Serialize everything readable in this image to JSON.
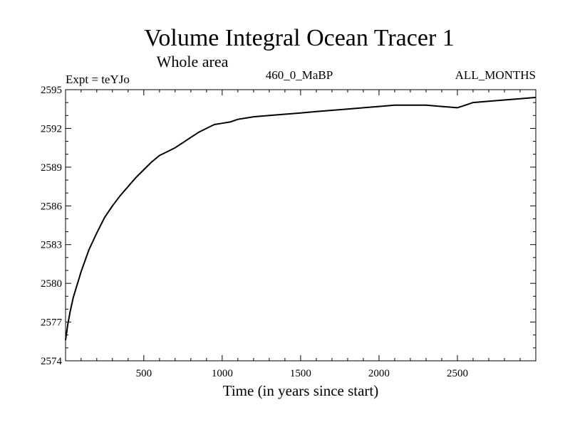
{
  "chart_data": {
    "type": "line",
    "title": "Volume Integral Ocean Tracer 1",
    "subtitle": "Whole area",
    "annotations": {
      "left": "Expt = teYJo",
      "center": "460_0_MaBP",
      "right": "ALL_MONTHS"
    },
    "xlabel": "Time (in years since start)",
    "ylabel": "",
    "xlim": [
      1,
      3000
    ],
    "ylim": [
      2574,
      2595
    ],
    "xticks": [
      500,
      1000,
      1500,
      2000,
      2500
    ],
    "yticks": [
      2574,
      2577,
      2580,
      2583,
      2586,
      2589,
      2592,
      2595
    ],
    "grid": false,
    "series": [
      {
        "name": "Volume Integral Ocean Tracer 1",
        "color": "#000000",
        "x": [
          1,
          15,
          30,
          50,
          75,
          100,
          150,
          200,
          250,
          300,
          350,
          400,
          450,
          500,
          550,
          600,
          650,
          700,
          750,
          800,
          850,
          900,
          950,
          1000,
          1050,
          1100,
          1200,
          1300,
          1400,
          1500,
          1600,
          1700,
          1800,
          1900,
          2000,
          2100,
          2200,
          2300,
          2400,
          2500,
          2550,
          2600,
          2700,
          2800,
          2900,
          3000
        ],
        "y": [
          2575.6,
          2576.8,
          2577.8,
          2578.9,
          2579.9,
          2580.9,
          2582.6,
          2583.9,
          2585.1,
          2586.0,
          2586.8,
          2587.5,
          2588.2,
          2588.8,
          2589.4,
          2589.9,
          2590.2,
          2590.5,
          2590.9,
          2591.3,
          2591.7,
          2592.0,
          2592.3,
          2592.4,
          2592.5,
          2592.7,
          2592.9,
          2593.0,
          2593.1,
          2593.2,
          2593.3,
          2593.4,
          2593.5,
          2593.6,
          2593.7,
          2593.8,
          2593.8,
          2593.8,
          2593.7,
          2593.6,
          2593.8,
          2594.0,
          2594.1,
          2594.2,
          2594.3,
          2594.4
        ]
      }
    ]
  }
}
